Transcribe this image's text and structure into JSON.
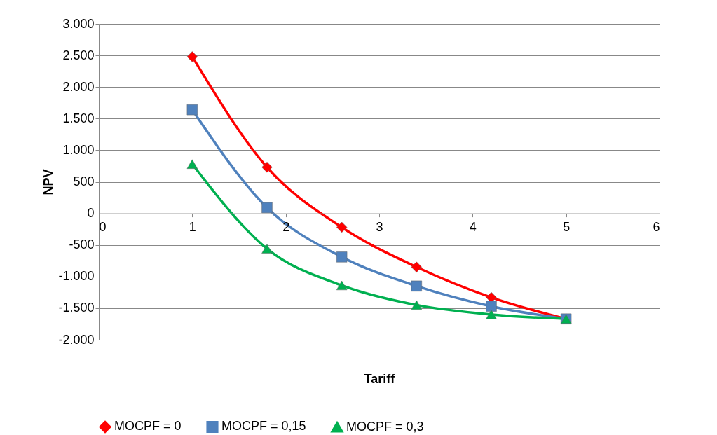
{
  "chart_data": {
    "type": "line",
    "xlabel": "Tariff",
    "ylabel": "NPV",
    "x": [
      1,
      1.8,
      2.6,
      3.4,
      4.2,
      5
    ],
    "series": [
      {
        "name": "MOCPF = 0",
        "color": "#ff0000",
        "marker": "diamond",
        "values": [
          2480,
          730,
          -220,
          -850,
          -1330,
          -1670
        ]
      },
      {
        "name": "MOCPF = 0,15",
        "color": "#4f81bd",
        "marker": "square",
        "values": [
          1640,
          90,
          -690,
          -1150,
          -1470,
          -1670
        ]
      },
      {
        "name": "MOCPF = 0,3",
        "color": "#00b050",
        "marker": "triangle",
        "values": [
          780,
          -560,
          -1140,
          -1450,
          -1600,
          -1670
        ]
      }
    ],
    "xlim": [
      0,
      6
    ],
    "xticks": [
      0,
      1,
      2,
      3,
      4,
      5,
      6
    ],
    "ylim": [
      -2000,
      3000
    ],
    "yticks": [
      {
        "value": -2000,
        "label": "-2.000"
      },
      {
        "value": -1500,
        "label": "-1.500"
      },
      {
        "value": -1000,
        "label": "-1.000"
      },
      -500,
      0,
      500,
      {
        "value": 1000,
        "label": "1.000"
      },
      {
        "value": 1500,
        "label": "1.500"
      },
      {
        "value": 2000,
        "label": "2.000"
      },
      {
        "value": 2500,
        "label": "2.500"
      },
      {
        "value": 3000,
        "label": "3.000"
      }
    ],
    "grid": "y",
    "legend": "bottom"
  }
}
